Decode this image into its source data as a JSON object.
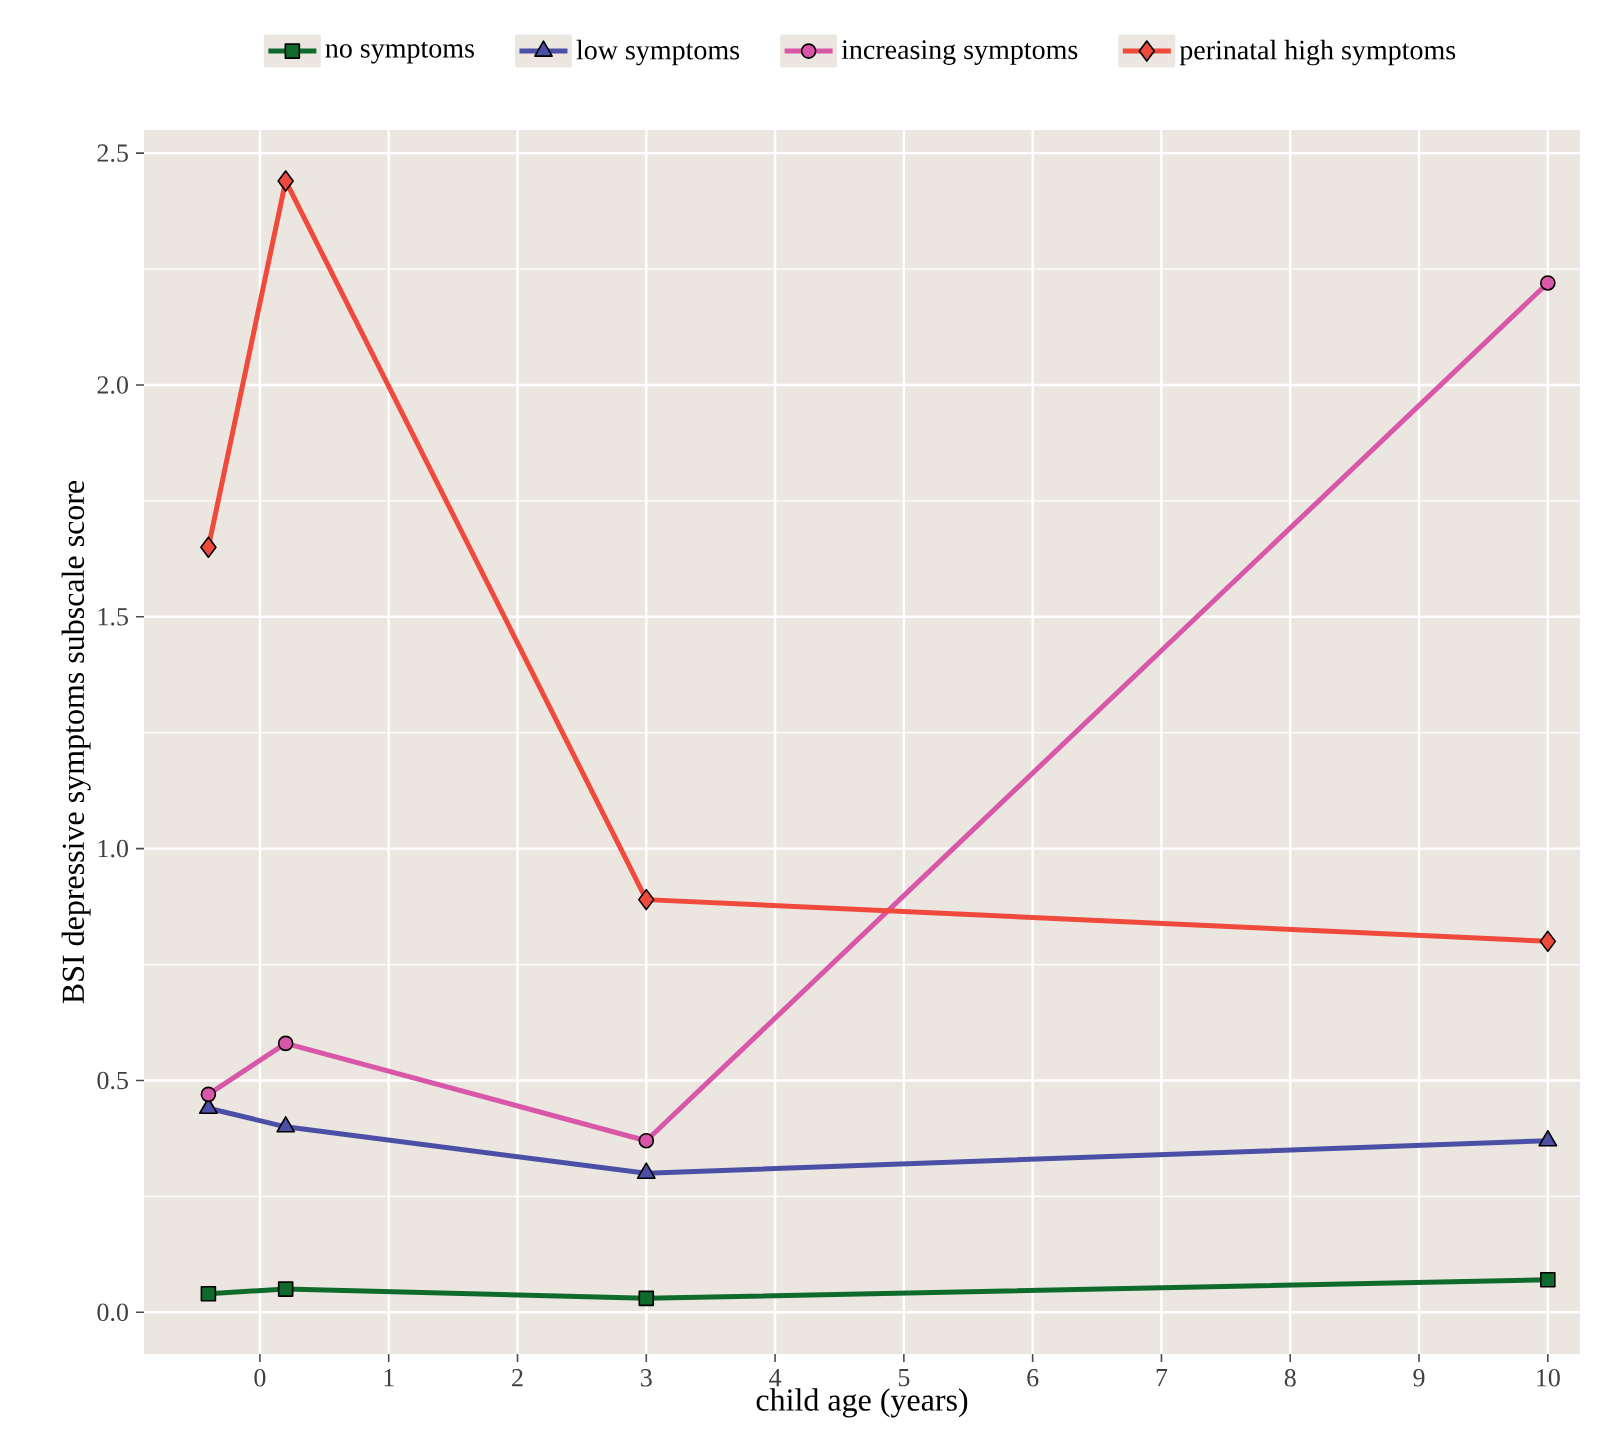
{
  "chart_data": {
    "type": "line",
    "xlabel": "child age (years)",
    "ylabel": "BSI depressive symptoms subscale score",
    "x": [
      -0.4,
      0.2,
      3,
      10
    ],
    "series": [
      {
        "name": "no symptoms",
        "color": "#0f6b2c",
        "marker": "square",
        "values": [
          0.04,
          0.05,
          0.03,
          0.07
        ]
      },
      {
        "name": "low symptoms",
        "color": "#4b4fa6",
        "marker": "triangle",
        "values": [
          0.44,
          0.4,
          0.3,
          0.37
        ]
      },
      {
        "name": "increasing symptoms",
        "color": "#d957a8",
        "marker": "circle",
        "values": [
          0.47,
          0.58,
          0.37,
          2.22
        ]
      },
      {
        "name": "perinatal high symptoms",
        "color": "#ef4a3c",
        "marker": "diamond",
        "values": [
          1.65,
          2.44,
          0.89,
          0.8
        ]
      }
    ],
    "xlim": [
      -0.9,
      10.25
    ],
    "ylim": [
      -0.09,
      2.55
    ],
    "xticks": [
      0,
      1,
      2,
      3,
      4,
      5,
      6,
      7,
      8,
      9,
      10
    ],
    "yticks": [
      {
        "value": 0,
        "label": "0.0"
      },
      {
        "value": 0.5,
        "label": "0.5"
      },
      {
        "value": 1,
        "label": "1.0"
      },
      {
        "value": 1.5,
        "label": "1.5"
      },
      {
        "value": 2,
        "label": "2.0"
      },
      {
        "value": 2.5,
        "label": "2.5"
      }
    ],
    "grid": true,
    "legend": "top",
    "line_style": "solid"
  }
}
